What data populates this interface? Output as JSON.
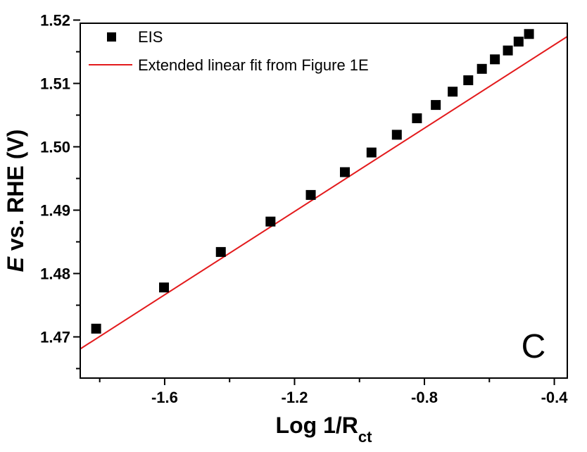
{
  "chart_data": {
    "type": "scatter",
    "xlabel_main": "Log 1/R",
    "xlabel_sub": "ct",
    "ylabel_italic": "E",
    "ylabel_rest": " vs. RHE (V)",
    "xlim": [
      -1.86,
      -0.36
    ],
    "ylim": [
      1.4635,
      1.5195
    ],
    "x_ticks": [
      -1.6,
      -1.2,
      -0.8,
      -0.4
    ],
    "x_tick_labels": [
      "-1.6",
      "-1.2",
      "-0.8",
      "-0.4"
    ],
    "y_ticks": [
      1.47,
      1.48,
      1.49,
      1.5,
      1.51,
      1.52
    ],
    "y_tick_labels": [
      "1.47",
      "1.48",
      "1.49",
      "1.50",
      "1.51",
      "1.52"
    ],
    "panel_label": "C",
    "series": [
      {
        "name": "EIS",
        "kind": "scatter",
        "marker": "square",
        "color": "#000000",
        "x": [
          -1.811,
          -1.602,
          -1.427,
          -1.274,
          -1.15,
          -1.045,
          -0.963,
          -0.885,
          -0.823,
          -0.765,
          -0.713,
          -0.665,
          -0.623,
          -0.583,
          -0.543,
          -0.51,
          -0.478
        ],
        "y": [
          1.4713,
          1.4778,
          1.4834,
          1.4882,
          1.4924,
          1.496,
          1.4991,
          1.5019,
          1.5045,
          1.5066,
          1.5087,
          1.5105,
          1.5123,
          1.5138,
          1.5152,
          1.5166,
          1.5178
        ]
      },
      {
        "name": "Extended linear fit from Figure 1E",
        "kind": "line",
        "color": "#e31a1c",
        "x": [
          -1.86,
          -0.36
        ],
        "y": [
          1.4681,
          1.5174
        ]
      }
    ]
  }
}
